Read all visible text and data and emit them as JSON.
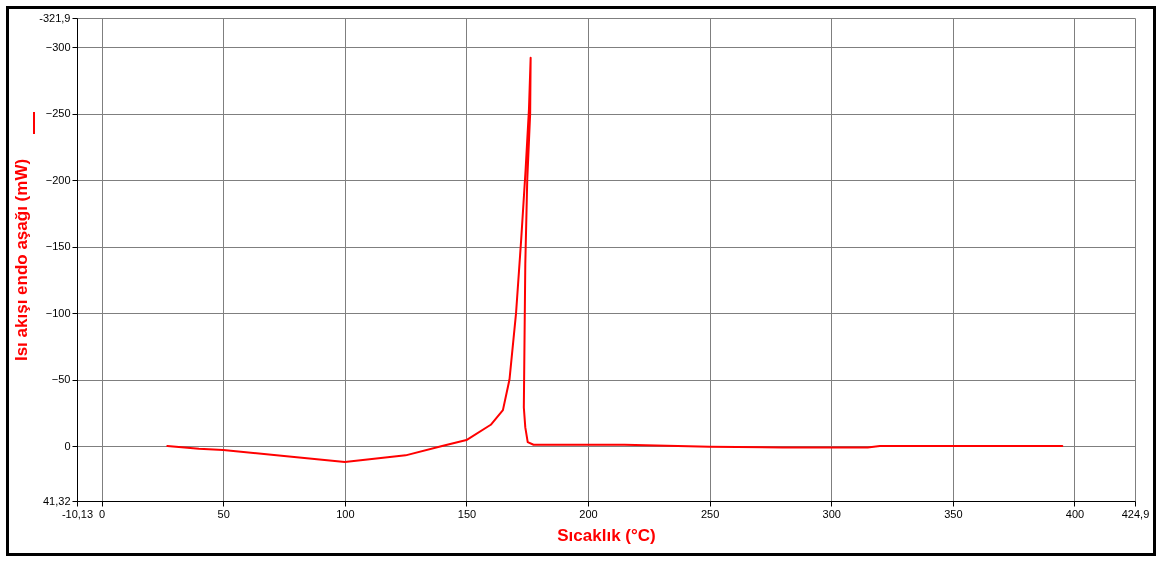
{
  "chart_data": {
    "type": "line",
    "xlabel": "Sıcaklık (°C)",
    "ylabel": "Isı akışı endo aşağı (mW)",
    "x": [
      27,
      40,
      50,
      75,
      100,
      125,
      140,
      150,
      160,
      165,
      167.7,
      170.4,
      172.5,
      174.3,
      175.7,
      176.4,
      176.2,
      175,
      174.2,
      173.6,
      174.2,
      175.2,
      177.6,
      200,
      215,
      250,
      280,
      315,
      320,
      395
    ],
    "series": [
      {
        "color": "#ff0000",
        "values": [
          0,
          2,
          3,
          7.5,
          12,
          7,
          0,
          -4.5,
          -16,
          -27,
          -50,
          -100,
          -155,
          -207,
          -253,
          -292,
          -250,
          -200,
          -137,
          -29,
          -14,
          -3,
          -1,
          -1,
          -1,
          0.5,
          1,
          1,
          0,
          0
        ]
      }
    ],
    "xlim": [
      -10.13,
      424.9
    ],
    "ylim": [
      41.32,
      -321.9
    ],
    "xticks": [
      {
        "value": -10.13,
        "label": "-10,13"
      },
      0,
      50,
      100,
      150,
      200,
      250,
      300,
      350,
      400,
      {
        "value": 424.9,
        "label": "424,9"
      }
    ],
    "yticks": [
      {
        "value": -321.9,
        "label": "-321,9"
      },
      -300,
      -250,
      -200,
      -150,
      -100,
      -50,
      0,
      {
        "value": 41.32,
        "label": "41,32"
      }
    ],
    "grid": true
  }
}
